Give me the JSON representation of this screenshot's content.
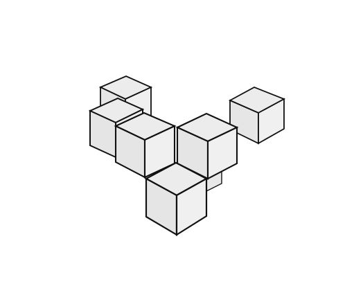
{
  "scene": {
    "background": "#ffffff",
    "face_fill": "#ececec",
    "edge_color": "#111111",
    "cube_count": 6
  }
}
